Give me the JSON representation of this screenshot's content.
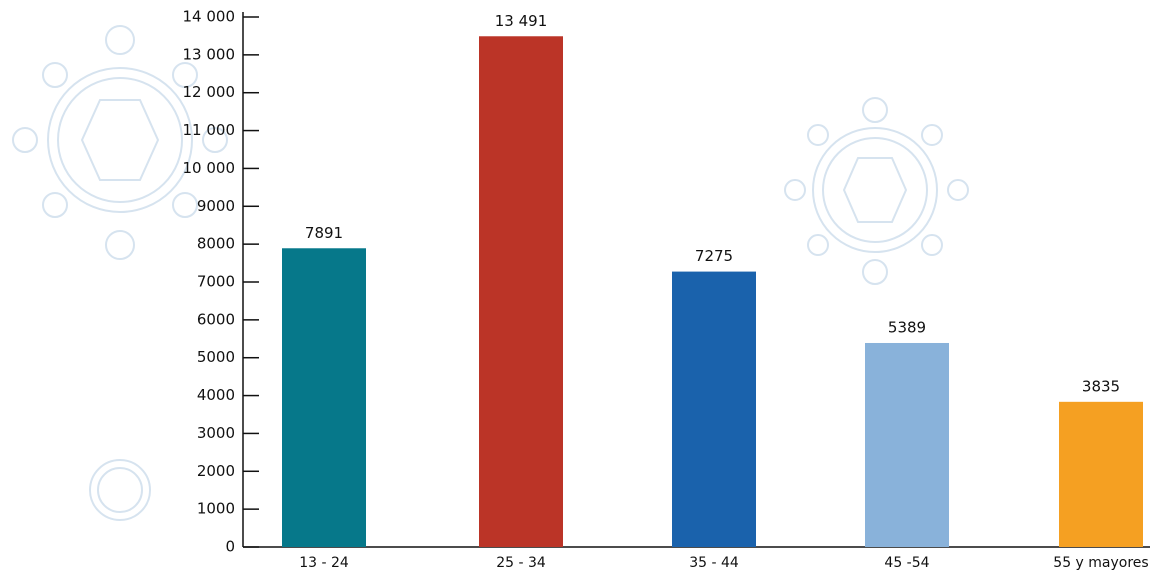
{
  "chart_data": {
    "type": "bar",
    "categories": [
      "13 - 24",
      "25 - 34",
      "35 - 44",
      "45 -54",
      "55 y mayores"
    ],
    "values": [
      7891,
      13491,
      7275,
      5389,
      3835
    ],
    "value_labels": [
      "7891",
      "13 491",
      "7275",
      "5389",
      "3835"
    ],
    "colors": [
      "#06788a",
      "#bb3427",
      "#1a62ac",
      "#89b2da",
      "#f5a022"
    ],
    "ylim": [
      0,
      14000
    ],
    "yticks": [
      0,
      1000,
      2000,
      3000,
      4000,
      5000,
      6000,
      7000,
      8000,
      9000,
      {
        "value": 10000,
        "label": "10 000"
      },
      {
        "value": 11000,
        "label": "11 000"
      },
      {
        "value": 12000,
        "label": "12 000"
      },
      {
        "value": 13000,
        "label": "13 000"
      },
      {
        "value": 14000,
        "label": "14 000"
      }
    ]
  }
}
